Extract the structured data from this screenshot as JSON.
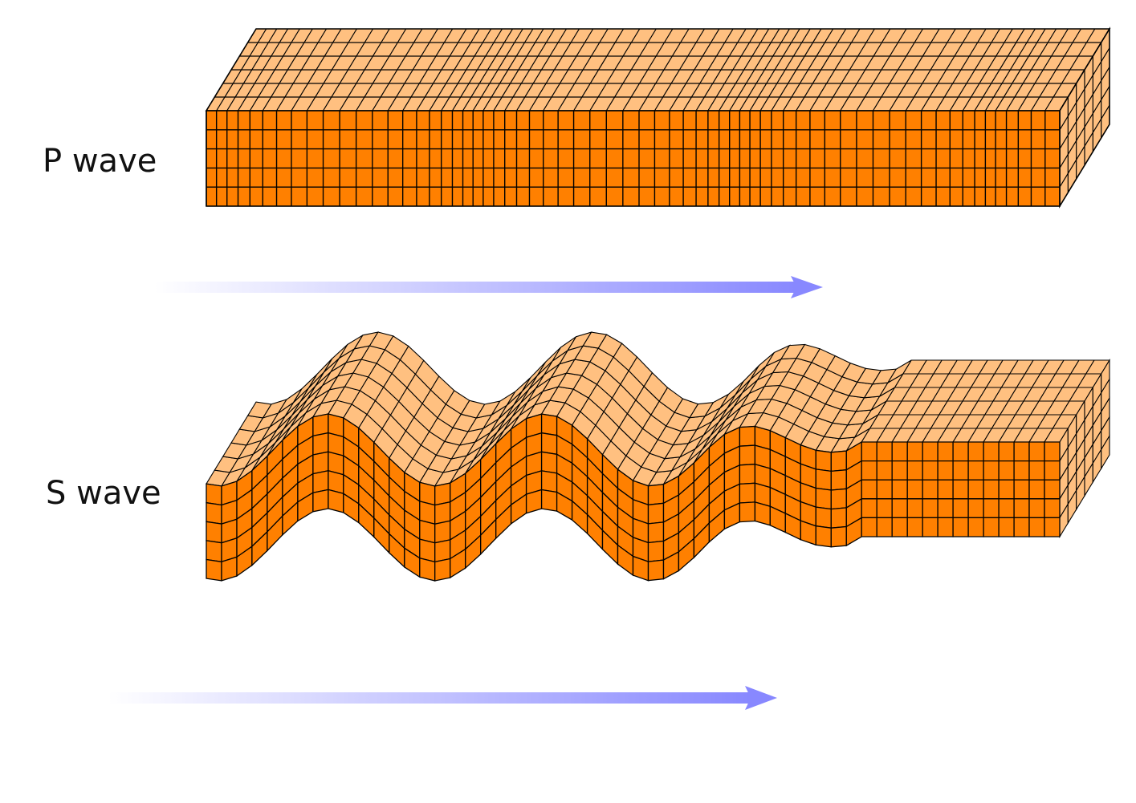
{
  "labels": {
    "p_wave": "P wave",
    "s_wave": "S wave"
  },
  "colors": {
    "front_face": "#ff8000",
    "top_face": "#ffc080",
    "side_face": "#ffc080",
    "grid_line": "#000000",
    "arrow": "#8888ff",
    "background": "#ffffff"
  },
  "arrows": {
    "direction": "right",
    "fade": "transparent-to-blue"
  }
}
